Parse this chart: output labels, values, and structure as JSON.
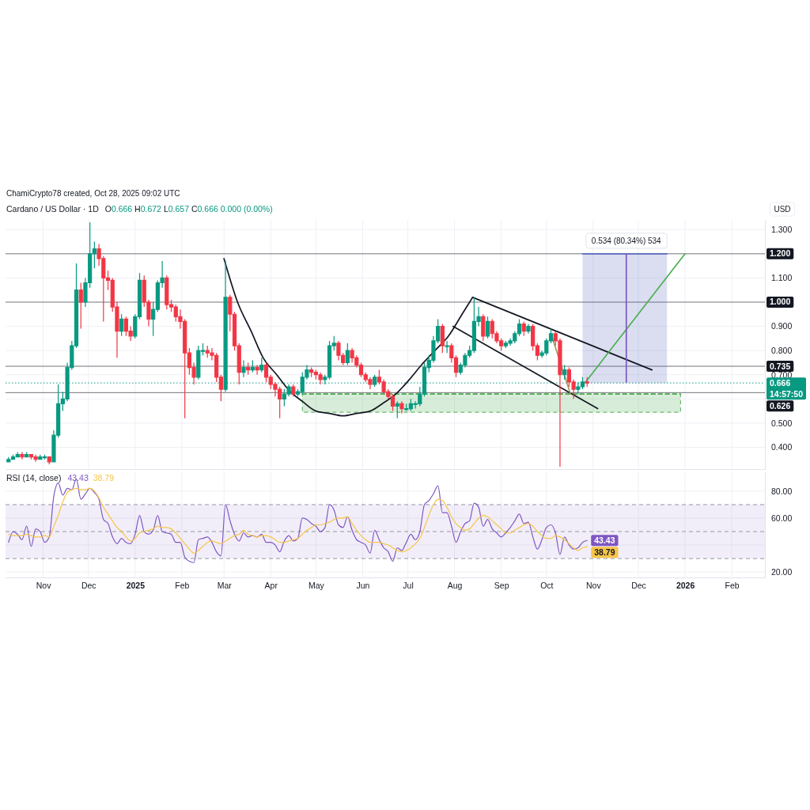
{
  "chart_data": [
    {
      "type": "candlestick",
      "title": "Cardano / US Dollar · 1D",
      "subtitle": "O0.666 H0.672 L0.657 C0.666 0.000 (0.00%)",
      "ylabel": "USD",
      "annotations": [
        "ChamiCrypto78 created, Oct 28, 2025 09:02 UTC",
        {
          "text": "0.534 (80.34%) 534",
          "x": "2025-11-23",
          "y": 1.2
        }
      ],
      "x": [
        "2024-10-09",
        "2024-10-12",
        "2024-10-15",
        "2024-10-18",
        "2024-10-21",
        "2024-10-24",
        "2024-10-27",
        "2024-10-30",
        "2024-11-02",
        "2024-11-05",
        "2024-11-08",
        "2024-11-11",
        "2024-11-14",
        "2024-11-17",
        "2024-11-20",
        "2024-11-23",
        "2024-11-26",
        "2024-11-29",
        "2024-12-02",
        "2024-12-05",
        "2024-12-08",
        "2024-12-11",
        "2024-12-14",
        "2024-12-17",
        "2024-12-20",
        "2024-12-23",
        "2024-12-26",
        "2024-12-29",
        "2025-01-01",
        "2025-01-04",
        "2025-01-07",
        "2025-01-10",
        "2025-01-13",
        "2025-01-16",
        "2025-01-19",
        "2025-01-22",
        "2025-01-25",
        "2025-01-28",
        "2025-01-31",
        "2025-02-03",
        "2025-02-06",
        "2025-02-09",
        "2025-02-12",
        "2025-02-15",
        "2025-02-18",
        "2025-02-21",
        "2025-02-24",
        "2025-02-27",
        "2025-03-02",
        "2025-03-05",
        "2025-03-08",
        "2025-03-11",
        "2025-03-14",
        "2025-03-17",
        "2025-03-20",
        "2025-03-23",
        "2025-03-26",
        "2025-03-29",
        "2025-04-01",
        "2025-04-04",
        "2025-04-07",
        "2025-04-10",
        "2025-04-13",
        "2025-04-16",
        "2025-04-19",
        "2025-04-22",
        "2025-04-25",
        "2025-04-28",
        "2025-05-01",
        "2025-05-04",
        "2025-05-07",
        "2025-05-10",
        "2025-05-13",
        "2025-05-16",
        "2025-05-19",
        "2025-05-22",
        "2025-05-25",
        "2025-05-28",
        "2025-05-31",
        "2025-06-03",
        "2025-06-06",
        "2025-06-09",
        "2025-06-12",
        "2025-06-15",
        "2025-06-18",
        "2025-06-21",
        "2025-06-24",
        "2025-06-27",
        "2025-06-30",
        "2025-07-03",
        "2025-07-06",
        "2025-07-09",
        "2025-07-12",
        "2025-07-15",
        "2025-07-18",
        "2025-07-21",
        "2025-07-24",
        "2025-07-27",
        "2025-07-30",
        "2025-08-02",
        "2025-08-05",
        "2025-08-08",
        "2025-08-11",
        "2025-08-14",
        "2025-08-17",
        "2025-08-20",
        "2025-08-23",
        "2025-08-26",
        "2025-08-29",
        "2025-09-01",
        "2025-09-04",
        "2025-09-07",
        "2025-09-10",
        "2025-09-13",
        "2025-09-16",
        "2025-09-19",
        "2025-09-22",
        "2025-09-25",
        "2025-09-28",
        "2025-10-01",
        "2025-10-04",
        "2025-10-07",
        "2025-10-10",
        "2025-10-13",
        "2025-10-16",
        "2025-10-19",
        "2025-10-22",
        "2025-10-25",
        "2025-10-28"
      ],
      "ohlc": [
        [
          0.34,
          0.36,
          0.34,
          0.35
        ],
        [
          0.35,
          0.37,
          0.35,
          0.36
        ],
        [
          0.36,
          0.38,
          0.36,
          0.37
        ],
        [
          0.37,
          0.38,
          0.35,
          0.36
        ],
        [
          0.36,
          0.38,
          0.36,
          0.37
        ],
        [
          0.37,
          0.37,
          0.35,
          0.36
        ],
        [
          0.36,
          0.37,
          0.34,
          0.35
        ],
        [
          0.35,
          0.37,
          0.35,
          0.36
        ],
        [
          0.36,
          0.37,
          0.35,
          0.36
        ],
        [
          0.36,
          0.36,
          0.33,
          0.34
        ],
        [
          0.34,
          0.47,
          0.34,
          0.45
        ],
        [
          0.45,
          0.66,
          0.44,
          0.58
        ],
        [
          0.58,
          0.63,
          0.55,
          0.6
        ],
        [
          0.6,
          0.75,
          0.59,
          0.73
        ],
        [
          0.73,
          0.84,
          0.72,
          0.82
        ],
        [
          0.82,
          1.16,
          0.81,
          1.05
        ],
        [
          1.05,
          1.08,
          0.89,
          1.0
        ],
        [
          1.0,
          1.1,
          0.98,
          1.08
        ],
        [
          1.08,
          1.33,
          1.06,
          1.2
        ],
        [
          1.2,
          1.25,
          1.14,
          1.22
        ],
        [
          1.22,
          1.24,
          1.15,
          1.18
        ],
        [
          1.18,
          1.19,
          0.92,
          1.1
        ],
        [
          1.1,
          1.13,
          1.05,
          1.09
        ],
        [
          1.09,
          1.1,
          0.96,
          0.98
        ],
        [
          0.98,
          1.0,
          0.77,
          0.88
        ],
        [
          0.88,
          0.95,
          0.86,
          0.93
        ],
        [
          0.93,
          0.94,
          0.86,
          0.88
        ],
        [
          0.88,
          0.9,
          0.84,
          0.86
        ],
        [
          0.86,
          0.95,
          0.85,
          0.94
        ],
        [
          0.94,
          1.12,
          0.93,
          1.09
        ],
        [
          1.09,
          1.11,
          0.98,
          1.0
        ],
        [
          1.0,
          1.01,
          0.9,
          0.93
        ],
        [
          0.93,
          1.0,
          0.86,
          0.97
        ],
        [
          0.97,
          1.09,
          0.96,
          1.08
        ],
        [
          1.08,
          1.17,
          1.06,
          1.1
        ],
        [
          1.1,
          1.11,
          0.97,
          0.99
        ],
        [
          0.99,
          1.01,
          0.96,
          0.98
        ],
        [
          0.98,
          0.99,
          0.92,
          0.94
        ],
        [
          0.94,
          0.97,
          0.89,
          0.92
        ],
        [
          0.92,
          0.93,
          0.52,
          0.79
        ],
        [
          0.79,
          0.81,
          0.7,
          0.73
        ],
        [
          0.73,
          0.75,
          0.66,
          0.69
        ],
        [
          0.69,
          0.82,
          0.68,
          0.8
        ],
        [
          0.8,
          0.83,
          0.78,
          0.8
        ],
        [
          0.8,
          0.82,
          0.77,
          0.79
        ],
        [
          0.79,
          0.81,
          0.76,
          0.78
        ],
        [
          0.78,
          0.79,
          0.67,
          0.69
        ],
        [
          0.69,
          0.7,
          0.59,
          0.64
        ],
        [
          0.64,
          1.17,
          0.63,
          1.02
        ],
        [
          1.02,
          1.03,
          0.88,
          0.95
        ],
        [
          0.95,
          0.96,
          0.8,
          0.82
        ],
        [
          0.82,
          0.83,
          0.66,
          0.71
        ],
        [
          0.71,
          0.76,
          0.69,
          0.73
        ],
        [
          0.73,
          0.75,
          0.7,
          0.72
        ],
        [
          0.72,
          0.76,
          0.71,
          0.73
        ],
        [
          0.73,
          0.74,
          0.7,
          0.72
        ],
        [
          0.72,
          0.77,
          0.71,
          0.74
        ],
        [
          0.74,
          0.75,
          0.67,
          0.69
        ],
        [
          0.69,
          0.7,
          0.64,
          0.66
        ],
        [
          0.66,
          0.67,
          0.61,
          0.64
        ],
        [
          0.64,
          0.65,
          0.52,
          0.6
        ],
        [
          0.6,
          0.64,
          0.57,
          0.62
        ],
        [
          0.62,
          0.66,
          0.61,
          0.65
        ],
        [
          0.65,
          0.66,
          0.61,
          0.62
        ],
        [
          0.62,
          0.64,
          0.61,
          0.63
        ],
        [
          0.63,
          0.71,
          0.62,
          0.69
        ],
        [
          0.69,
          0.74,
          0.68,
          0.72
        ],
        [
          0.72,
          0.73,
          0.69,
          0.71
        ],
        [
          0.71,
          0.72,
          0.68,
          0.7
        ],
        [
          0.7,
          0.71,
          0.66,
          0.68
        ],
        [
          0.68,
          0.7,
          0.66,
          0.69
        ],
        [
          0.69,
          0.84,
          0.68,
          0.82
        ],
        [
          0.82,
          0.86,
          0.8,
          0.83
        ],
        [
          0.83,
          0.84,
          0.76,
          0.78
        ],
        [
          0.78,
          0.79,
          0.74,
          0.75
        ],
        [
          0.75,
          0.83,
          0.74,
          0.8
        ],
        [
          0.8,
          0.81,
          0.75,
          0.77
        ],
        [
          0.77,
          0.78,
          0.73,
          0.74
        ],
        [
          0.74,
          0.75,
          0.69,
          0.7
        ],
        [
          0.7,
          0.71,
          0.67,
          0.68
        ],
        [
          0.68,
          0.69,
          0.64,
          0.66
        ],
        [
          0.66,
          0.7,
          0.65,
          0.69
        ],
        [
          0.69,
          0.72,
          0.66,
          0.67
        ],
        [
          0.67,
          0.68,
          0.62,
          0.63
        ],
        [
          0.63,
          0.64,
          0.6,
          0.61
        ],
        [
          0.61,
          0.62,
          0.55,
          0.57
        ],
        [
          0.57,
          0.59,
          0.52,
          0.58
        ],
        [
          0.58,
          0.59,
          0.54,
          0.56
        ],
        [
          0.56,
          0.58,
          0.55,
          0.56
        ],
        [
          0.56,
          0.6,
          0.55,
          0.58
        ],
        [
          0.58,
          0.59,
          0.56,
          0.58
        ],
        [
          0.58,
          0.65,
          0.57,
          0.62
        ],
        [
          0.62,
          0.75,
          0.61,
          0.73
        ],
        [
          0.73,
          0.78,
          0.71,
          0.76
        ],
        [
          0.76,
          0.86,
          0.75,
          0.84
        ],
        [
          0.84,
          0.93,
          0.83,
          0.9
        ],
        [
          0.9,
          0.91,
          0.79,
          0.82
        ],
        [
          0.82,
          0.84,
          0.79,
          0.82
        ],
        [
          0.82,
          0.83,
          0.75,
          0.77
        ],
        [
          0.77,
          0.78,
          0.69,
          0.71
        ],
        [
          0.71,
          0.75,
          0.7,
          0.74
        ],
        [
          0.74,
          0.79,
          0.73,
          0.78
        ],
        [
          0.78,
          0.82,
          0.77,
          0.8
        ],
        [
          0.8,
          1.02,
          0.79,
          0.92
        ],
        [
          0.92,
          0.98,
          0.9,
          0.94
        ],
        [
          0.94,
          0.95,
          0.84,
          0.86
        ],
        [
          0.86,
          0.94,
          0.85,
          0.92
        ],
        [
          0.92,
          0.93,
          0.85,
          0.87
        ],
        [
          0.87,
          0.88,
          0.83,
          0.84
        ],
        [
          0.84,
          0.85,
          0.8,
          0.82
        ],
        [
          0.82,
          0.84,
          0.81,
          0.83
        ],
        [
          0.83,
          0.85,
          0.82,
          0.84
        ],
        [
          0.84,
          0.88,
          0.83,
          0.87
        ],
        [
          0.87,
          0.93,
          0.86,
          0.91
        ],
        [
          0.91,
          0.92,
          0.86,
          0.88
        ],
        [
          0.88,
          0.91,
          0.87,
          0.9
        ],
        [
          0.9,
          0.91,
          0.8,
          0.82
        ],
        [
          0.82,
          0.83,
          0.76,
          0.78
        ],
        [
          0.78,
          0.8,
          0.77,
          0.79
        ],
        [
          0.79,
          0.85,
          0.78,
          0.84
        ],
        [
          0.84,
          0.89,
          0.83,
          0.87
        ],
        [
          0.87,
          0.88,
          0.82,
          0.84
        ],
        [
          0.84,
          0.85,
          0.32,
          0.7
        ],
        [
          0.7,
          0.74,
          0.68,
          0.72
        ],
        [
          0.72,
          0.73,
          0.65,
          0.67
        ],
        [
          0.67,
          0.68,
          0.6,
          0.64
        ],
        [
          0.64,
          0.67,
          0.62,
          0.65
        ],
        [
          0.65,
          0.69,
          0.64,
          0.67
        ],
        [
          0.67,
          0.69,
          0.65,
          0.666
        ]
      ],
      "colors": [
        "#089981",
        "#089981",
        "#089981",
        "#f23645",
        "#089981",
        "#f23645",
        "#f23645",
        "#089981",
        "#089981",
        "#f23645",
        "#089981",
        "#089981",
        "#089981",
        "#089981",
        "#089981",
        "#089981",
        "#f23645",
        "#089981",
        "#089981",
        "#089981",
        "#f23645",
        "#f23645",
        "#f23645",
        "#f23645",
        "#f23645",
        "#089981",
        "#f23645",
        "#f23645",
        "#089981",
        "#089981",
        "#f23645",
        "#f23645",
        "#089981",
        "#089981",
        "#089981",
        "#f23645",
        "#f23645",
        "#f23645",
        "#f23645",
        "#f23645",
        "#f23645",
        "#f23645",
        "#089981",
        "#089981",
        "#f23645",
        "#f23645",
        "#f23645",
        "#f23645",
        "#089981",
        "#f23645",
        "#f23645",
        "#f23645",
        "#089981",
        "#f23645",
        "#089981",
        "#f23645",
        "#089981",
        "#f23645",
        "#f23645",
        "#f23645",
        "#f23645",
        "#089981",
        "#089981",
        "#f23645",
        "#089981",
        "#089981",
        "#089981",
        "#f23645",
        "#f23645",
        "#f23645",
        "#089981",
        "#089981",
        "#089981",
        "#f23645",
        "#f23645",
        "#089981",
        "#f23645",
        "#f23645",
        "#f23645",
        "#f23645",
        "#f23645",
        "#089981",
        "#f23645",
        "#f23645",
        "#f23645",
        "#f23645",
        "#089981",
        "#f23645",
        "#089981",
        "#089981",
        "#089981",
        "#089981",
        "#089981",
        "#089981",
        "#089981",
        "#089981",
        "#f23645",
        "#089981",
        "#f23645",
        "#f23645",
        "#089981",
        "#089981",
        "#089981",
        "#089981",
        "#089981",
        "#f23645",
        "#089981",
        "#f23645",
        "#f23645",
        "#f23645",
        "#089981",
        "#089981",
        "#089981",
        "#089981",
        "#f23645",
        "#089981",
        "#f23645",
        "#f23645",
        "#089981",
        "#089981",
        "#089981",
        "#f23645",
        "#f23645",
        "#089981",
        "#f23645",
        "#f23645",
        "#089981",
        "#089981",
        "#f23645"
      ],
      "series": [
        {
          "type": "line",
          "x": [
            "2025-04-22",
            "2025-12-29"
          ],
          "values": [
            0.62,
            0.62
          ],
          "lower": [
            0.545,
            0.545
          ],
          "upper": [
            0.62,
            0.62
          ],
          "color": "#4caf50",
          "line_style": "dashed"
        },
        {
          "type": "line",
          "x": [
            "2025-10-25",
            "2025-12-20"
          ],
          "values": [
            1.2,
            1.2
          ],
          "lower": [
            0.666,
            0.666
          ],
          "upper": [
            1.2,
            1.2
          ],
          "color": "#5c6bc0"
        },
        {
          "type": "line",
          "x": [
            "2025-03-01",
            "2025-03-10",
            "2025-03-19",
            "2025-03-27",
            "2025-04-05",
            "2025-04-14",
            "2025-04-22",
            "2025-05-01",
            "2025-05-10",
            "2025-05-19",
            "2025-05-28",
            "2025-06-06",
            "2025-06-14",
            "2025-06-23",
            "2025-07-02",
            "2025-07-10",
            "2025-07-19",
            "2025-07-28",
            "2025-08-06",
            "2025-08-13"
          ],
          "values": [
            1.18,
            1.0,
            0.88,
            0.77,
            0.7,
            0.63,
            0.59,
            0.55,
            0.54,
            0.53,
            0.54,
            0.55,
            0.58,
            0.62,
            0.68,
            0.74,
            0.8,
            0.86,
            0.95,
            1.02
          ],
          "color": "#131722"
        },
        {
          "type": "line",
          "x": [
            "2025-08-13",
            "2025-12-10"
          ],
          "values": [
            1.02,
            0.72
          ],
          "color": "#131722"
        },
        {
          "type": "line",
          "x": [
            "2025-07-31",
            "2025-11-04"
          ],
          "values": [
            0.9,
            0.56
          ],
          "color": "#131722"
        },
        {
          "type": "line",
          "x": [
            "2025-10-27",
            "2026-01-01"
          ],
          "values": [
            0.67,
            1.2
          ],
          "color": "#4caf50"
        },
        {
          "type": "line",
          "x": [
            "2025-10-05",
            "2025-10-17"
          ],
          "values": [
            0.85,
            0.62
          ],
          "color": "#a09a60"
        },
        {
          "type": "line",
          "x": [
            "2025-11-23",
            "2025-11-23"
          ],
          "values": [
            0.67,
            1.2
          ],
          "color": "#7e57c2"
        }
      ],
      "xlim": [
        "2024-10-07",
        "2026-02-23"
      ],
      "ylim": [
        0.31,
        1.34
      ],
      "xticks": [
        {
          "value": "2024-11-01",
          "label": null
        },
        {
          "value": "2024-12-01",
          "label": null
        },
        {
          "value": "2025-01-01",
          "label": null
        },
        {
          "value": "2025-02-01",
          "label": null
        },
        {
          "value": "2025-03-01",
          "label": null
        },
        {
          "value": "2025-04-01",
          "label": null
        },
        {
          "value": "2025-05-01",
          "label": null
        },
        {
          "value": "2025-06-01",
          "label": null
        },
        {
          "value": "2025-07-01",
          "label": null
        },
        {
          "value": "2025-08-01",
          "label": null
        },
        {
          "value": "2025-09-01",
          "label": null
        },
        {
          "value": "2025-10-01",
          "label": null
        },
        {
          "value": "2025-11-01",
          "label": null
        },
        {
          "value": "2025-12-01",
          "label": null
        },
        {
          "value": "2026-01-01",
          "label": null
        },
        {
          "value": "2026-02-01",
          "label": null
        }
      ],
      "yticks": [
        {
          "value": 0.4,
          "label": "0.400"
        },
        {
          "value": 0.5,
          "label": "0.500"
        },
        {
          "value": 0.6,
          "label": null
        },
        {
          "value": 0.7,
          "label": "0.700"
        },
        {
          "value": 0.8,
          "label": "0.800"
        },
        {
          "value": 0.9,
          "label": "0.900"
        },
        {
          "value": 1.0,
          "label": null
        },
        {
          "value": 1.1,
          "label": "1.100"
        },
        {
          "value": 1.2,
          "label": null
        },
        {
          "value": 1.3,
          "label": "1.300"
        }
      ],
      "tick_labels": "y",
      "grid": true,
      "ref_lines": [
        {
          "axis": "y",
          "value": 1.2,
          "label": "1.200",
          "color": "#131722"
        },
        {
          "axis": "y",
          "value": 1.0,
          "label": "1.000",
          "color": "#131722"
        },
        {
          "axis": "y",
          "value": 0.735,
          "label": "0.735",
          "color": "#131722"
        },
        {
          "axis": "y",
          "value": 0.666,
          "label": "0.666\n14:57:50",
          "color": "#089981",
          "line_style": "dotted"
        },
        {
          "axis": "y",
          "value": 0.626,
          "label": "0.626",
          "color": "#131722"
        }
      ]
    },
    {
      "type": "line",
      "title": "RSI (14, close)",
      "x": [
        "2024-10-09",
        "2024-10-12",
        "2024-10-15",
        "2024-10-18",
        "2024-10-21",
        "2024-10-24",
        "2024-10-27",
        "2024-10-30",
        "2024-11-02",
        "2024-11-05",
        "2024-11-08",
        "2024-11-11",
        "2024-11-14",
        "2024-11-17",
        "2024-11-20",
        "2024-11-23",
        "2024-11-26",
        "2024-11-29",
        "2024-12-02",
        "2024-12-05",
        "2024-12-08",
        "2024-12-11",
        "2024-12-14",
        "2024-12-17",
        "2024-12-20",
        "2024-12-23",
        "2024-12-26",
        "2024-12-29",
        "2025-01-01",
        "2025-01-04",
        "2025-01-07",
        "2025-01-10",
        "2025-01-13",
        "2025-01-16",
        "2025-01-19",
        "2025-01-22",
        "2025-01-25",
        "2025-01-28",
        "2025-01-31",
        "2025-02-03",
        "2025-02-06",
        "2025-02-09",
        "2025-02-12",
        "2025-02-15",
        "2025-02-18",
        "2025-02-21",
        "2025-02-24",
        "2025-02-27",
        "2025-03-02",
        "2025-03-05",
        "2025-03-08",
        "2025-03-11",
        "2025-03-14",
        "2025-03-17",
        "2025-03-20",
        "2025-03-23",
        "2025-03-26",
        "2025-03-29",
        "2025-04-01",
        "2025-04-04",
        "2025-04-07",
        "2025-04-10",
        "2025-04-13",
        "2025-04-16",
        "2025-04-19",
        "2025-04-22",
        "2025-04-25",
        "2025-04-28",
        "2025-05-01",
        "2025-05-04",
        "2025-05-07",
        "2025-05-10",
        "2025-05-13",
        "2025-05-16",
        "2025-05-19",
        "2025-05-22",
        "2025-05-25",
        "2025-05-28",
        "2025-05-31",
        "2025-06-03",
        "2025-06-06",
        "2025-06-09",
        "2025-06-12",
        "2025-06-15",
        "2025-06-18",
        "2025-06-21",
        "2025-06-24",
        "2025-06-27",
        "2025-06-30",
        "2025-07-03",
        "2025-07-06",
        "2025-07-09",
        "2025-07-12",
        "2025-07-15",
        "2025-07-18",
        "2025-07-21",
        "2025-07-24",
        "2025-07-27",
        "2025-07-30",
        "2025-08-02",
        "2025-08-05",
        "2025-08-08",
        "2025-08-11",
        "2025-08-14",
        "2025-08-17",
        "2025-08-20",
        "2025-08-23",
        "2025-08-26",
        "2025-08-29",
        "2025-09-01",
        "2025-09-04",
        "2025-09-07",
        "2025-09-10",
        "2025-09-13",
        "2025-09-16",
        "2025-09-19",
        "2025-09-22",
        "2025-09-25",
        "2025-09-28",
        "2025-10-01",
        "2025-10-04",
        "2025-10-07",
        "2025-10-10",
        "2025-10-13",
        "2025-10-16",
        "2025-10-19",
        "2025-10-22",
        "2025-10-25",
        "2025-10-28"
      ],
      "series": [
        {
          "color": "#7e57c2",
          "values": [
            42,
            50,
            48,
            44,
            54,
            39,
            52,
            50,
            42,
            46,
            76,
            86,
            77,
            82,
            81,
            89,
            74,
            78,
            82,
            79,
            74,
            59,
            56,
            46,
            41,
            45,
            42,
            41,
            48,
            62,
            50,
            48,
            51,
            62,
            50,
            49,
            48,
            42,
            42,
            31,
            28,
            27,
            44,
            45,
            46,
            42,
            35,
            32,
            70,
            58,
            48,
            43,
            49,
            46,
            47,
            46,
            48,
            42,
            42,
            40,
            35,
            43,
            47,
            43,
            45,
            60,
            59,
            56,
            54,
            50,
            53,
            70,
            66,
            55,
            53,
            61,
            51,
            44,
            42,
            40,
            34,
            51,
            44,
            38,
            35,
            28,
            38,
            36,
            42,
            48,
            44,
            50,
            70,
            73,
            78,
            84,
            64,
            64,
            54,
            42,
            50,
            56,
            58,
            71,
            68,
            54,
            59,
            52,
            49,
            46,
            49,
            53,
            58,
            63,
            56,
            57,
            46,
            37,
            44,
            53,
            55,
            49,
            33,
            46,
            40,
            37,
            38,
            42,
            43.43
          ],
          "value_labels": [
            null,
            null,
            null,
            null,
            null,
            null,
            null,
            null,
            null,
            null,
            null,
            null,
            null,
            null,
            null,
            null,
            null,
            null,
            null,
            null,
            null,
            null,
            null,
            null,
            null,
            null,
            null,
            null,
            null,
            null,
            null,
            null,
            null,
            null,
            null,
            null,
            null,
            null,
            null,
            null,
            null,
            null,
            null,
            null,
            null,
            null,
            null,
            null,
            null,
            null,
            null,
            null,
            null,
            null,
            null,
            null,
            null,
            null,
            null,
            null,
            null,
            null,
            null,
            null,
            null,
            null,
            null,
            null,
            null,
            null,
            null,
            null,
            null,
            null,
            null,
            null,
            null,
            null,
            null,
            null,
            null,
            null,
            null,
            null,
            null,
            null,
            null,
            null,
            null,
            null,
            null,
            null,
            null,
            null,
            null,
            null,
            null,
            null,
            null,
            null,
            null,
            null,
            null,
            null,
            null,
            null,
            null,
            null,
            null,
            null,
            null,
            null,
            null,
            null,
            null,
            null,
            null,
            null,
            null,
            null,
            null,
            null,
            null,
            null,
            null,
            null,
            null,
            null,
            "43.43"
          ]
        },
        {
          "color": "#f7c548",
          "values": [
            48,
            47,
            47,
            47,
            48,
            47,
            46,
            46,
            47,
            46,
            54,
            62,
            72,
            79,
            81,
            82,
            81,
            81,
            82,
            80,
            75,
            68,
            63,
            58,
            53,
            50,
            46,
            43,
            45,
            49,
            50,
            51,
            52,
            54,
            53,
            53,
            52,
            49,
            45,
            41,
            37,
            34,
            36,
            39,
            42,
            43,
            42,
            41,
            43,
            45,
            47,
            48,
            51,
            48,
            47,
            46,
            47,
            47,
            46,
            44,
            42,
            42,
            43,
            44,
            45,
            48,
            51,
            53,
            55,
            55,
            56,
            57,
            59,
            60,
            60,
            61,
            56,
            51,
            47,
            44,
            42,
            42,
            42,
            41,
            40,
            38,
            36,
            35,
            36,
            38,
            41,
            45,
            53,
            62,
            70,
            74,
            73,
            68,
            61,
            56,
            53,
            51,
            52,
            56,
            60,
            62,
            61,
            58,
            55,
            52,
            49,
            49,
            51,
            53,
            55,
            56,
            54,
            50,
            47,
            45,
            45,
            47,
            46,
            44,
            41,
            38,
            36,
            38,
            38.79
          ],
          "value_labels": [
            null,
            null,
            null,
            null,
            null,
            null,
            null,
            null,
            null,
            null,
            null,
            null,
            null,
            null,
            null,
            null,
            null,
            null,
            null,
            null,
            null,
            null,
            null,
            null,
            null,
            null,
            null,
            null,
            null,
            null,
            null,
            null,
            null,
            null,
            null,
            null,
            null,
            null,
            null,
            null,
            null,
            null,
            null,
            null,
            null,
            null,
            null,
            null,
            null,
            null,
            null,
            null,
            null,
            null,
            null,
            null,
            null,
            null,
            null,
            null,
            null,
            null,
            null,
            null,
            null,
            null,
            null,
            null,
            null,
            null,
            null,
            null,
            null,
            null,
            null,
            null,
            null,
            null,
            null,
            null,
            null,
            null,
            null,
            null,
            null,
            null,
            null,
            null,
            null,
            null,
            null,
            null,
            null,
            null,
            null,
            null,
            null,
            null,
            null,
            null,
            null,
            null,
            null,
            null,
            null,
            null,
            null,
            null,
            null,
            null,
            null,
            null,
            null,
            null,
            null,
            null,
            null,
            null,
            null,
            null,
            null,
            null,
            null,
            null,
            null,
            null,
            null,
            null,
            "38.79"
          ]
        }
      ],
      "xlim": [
        "2024-10-07",
        "2026-02-23"
      ],
      "ylim": [
        16,
        94
      ],
      "xticks": [
        {
          "value": "2024-11-01",
          "label": "Nov"
        },
        {
          "value": "2024-12-01",
          "label": "Dec"
        },
        {
          "value": "2025-01-01",
          "label": "2025"
        },
        {
          "value": "2025-02-01",
          "label": "Feb"
        },
        {
          "value": "2025-03-01",
          "label": "Mar"
        },
        {
          "value": "2025-04-01",
          "label": "Apr"
        },
        {
          "value": "2025-05-01",
          "label": "May"
        },
        {
          "value": "2025-06-01",
          "label": "Jun"
        },
        {
          "value": "2025-07-01",
          "label": "Jul"
        },
        {
          "value": "2025-08-01",
          "label": "Aug"
        },
        {
          "value": "2025-09-01",
          "label": "Sep"
        },
        {
          "value": "2025-10-01",
          "label": "Oct"
        },
        {
          "value": "2025-11-01",
          "label": "Nov"
        },
        {
          "value": "2025-12-01",
          "label": "Dec"
        },
        {
          "value": "2026-01-01",
          "label": "2026"
        },
        {
          "value": "2026-02-01",
          "label": "Feb"
        }
      ],
      "yticks": [
        {
          "value": 20,
          "label": "20.00"
        },
        {
          "value": 40,
          "label": null
        },
        {
          "value": 60,
          "label": "60.00"
        },
        {
          "value": 80,
          "label": "80.00"
        }
      ],
      "grid": true,
      "bands": [
        {
          "axis": "y",
          "from": 30,
          "to": 70,
          "color": "#7e57c2"
        }
      ],
      "ref_lines": [
        {
          "axis": "y",
          "value": 70,
          "color": "#9598a1",
          "line_style": "dashed"
        },
        {
          "axis": "y",
          "value": 50,
          "color": "#9598a1",
          "line_style": "dashed"
        },
        {
          "axis": "y",
          "value": 30,
          "color": "#9598a1",
          "line_style": "dashed"
        }
      ]
    }
  ]
}
